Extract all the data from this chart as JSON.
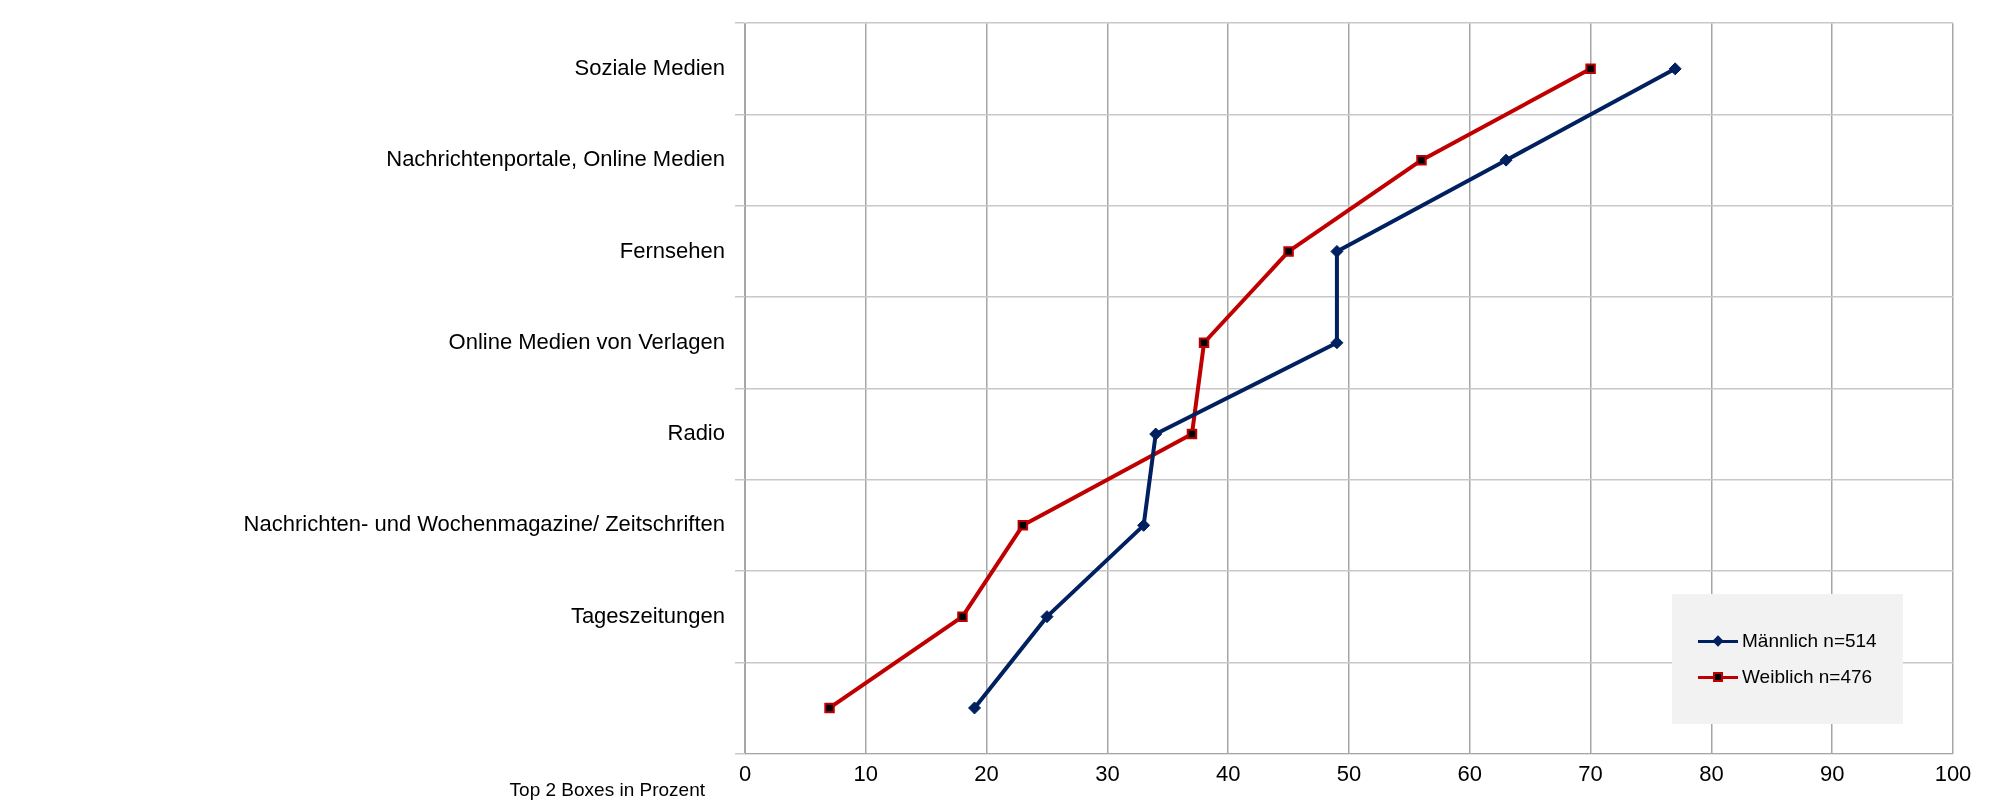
{
  "chart_data": {
    "type": "line",
    "orientation": "horizontal",
    "categories": [
      "Soziale Medien",
      "Nachrichtenportale, Online Medien",
      "Fernsehen",
      "Online Medien von Verlagen",
      "Radio",
      "Nachrichten- und Wochenmagazine/ Zeitschriften",
      "Tageszeitungen",
      null
    ],
    "series": [
      {
        "name": "Männlich n=514",
        "color": "#002060",
        "marker": "diamond",
        "values": [
          77,
          63,
          49,
          49,
          34,
          33,
          25,
          19
        ]
      },
      {
        "name": "Weiblich n=476",
        "color": "#c00000",
        "marker": "square",
        "values": [
          70,
          56,
          45,
          38,
          37,
          23,
          18,
          7
        ]
      }
    ],
    "xlabel": "Top 2 Boxes in Prozent",
    "xlim": [
      0,
      100
    ],
    "xticks": [
      0,
      10,
      20,
      30,
      40,
      50,
      60,
      70,
      80,
      90,
      100
    ],
    "grid": true,
    "legend": "bottom right",
    "line_style": "solid"
  }
}
